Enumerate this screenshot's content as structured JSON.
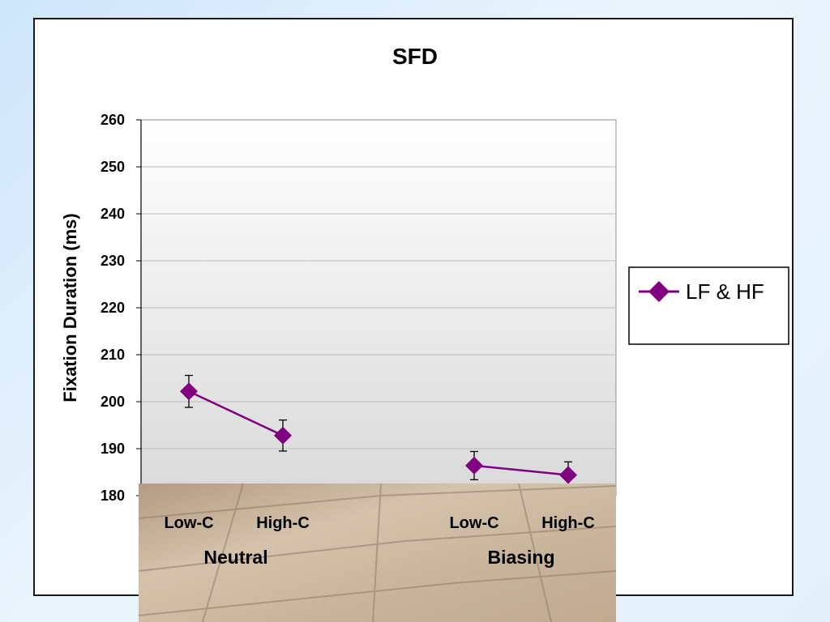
{
  "colors": {
    "series": "#800080",
    "gridline": "#bdbdbd",
    "plot_bg_top": "#ffffff",
    "plot_bg_bottom": "#d9d9d9",
    "background": "#dbeefc"
  },
  "chart_data": {
    "type": "line",
    "title": "SFD",
    "ylabel": "Fixation Duration (ms)",
    "xlabel": "",
    "ylim": [
      180,
      260
    ],
    "yticks": [
      180,
      190,
      200,
      210,
      220,
      230,
      240,
      250,
      260
    ],
    "grid": true,
    "legend_position": "right",
    "categories": [
      "Low-C",
      "High-C",
      "Low-C",
      "High-C"
    ],
    "groups": [
      {
        "label": "Neutral",
        "categories": [
          0,
          1
        ]
      },
      {
        "label": "Biasing",
        "categories": [
          2,
          3
        ]
      }
    ],
    "series": [
      {
        "name": "LF & HF",
        "segments": [
          [
            {
              "category": 0,
              "y": 202.2,
              "err": 3.4
            },
            {
              "category": 1,
              "y": 192.8,
              "err": 3.3
            }
          ],
          [
            {
              "category": 2,
              "y": 186.4,
              "err": 3.0
            },
            {
              "category": 3,
              "y": 184.4,
              "err": 2.8
            }
          ]
        ]
      }
    ]
  }
}
